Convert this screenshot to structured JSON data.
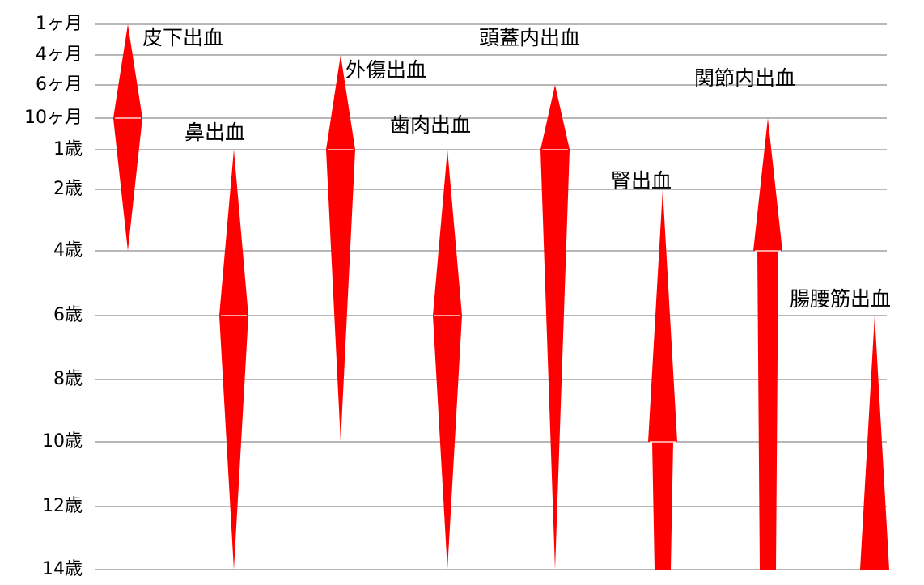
{
  "chart_data": {
    "type": "range-marks",
    "y_axis": {
      "direction": "top-to-bottom",
      "ticks": [
        "1ヶ月",
        "4ヶ月",
        "6ヶ月",
        "10ヶ月",
        "1歳",
        "2歳",
        "4歳",
        "6歳",
        "8歳",
        "10歳",
        "12歳",
        "14歳"
      ],
      "grid": true
    },
    "series_color": "#ff0000",
    "categories": [
      {
        "label": "皮下出血",
        "start": "1ヶ月",
        "peak": "10ヶ月",
        "end": "4歳",
        "shape": "diamond"
      },
      {
        "label": "鼻出血",
        "start": "1歳",
        "peak": "6歳",
        "end": "14歳",
        "shape": "diamond"
      },
      {
        "label": "外傷出血",
        "start": "4ヶ月",
        "peak": "1歳",
        "end": "10歳",
        "shape": "diamond"
      },
      {
        "label": "歯肉出血",
        "start": "1歳",
        "peak": "6歳",
        "end": "14歳",
        "shape": "diamond"
      },
      {
        "label": "頭蓋内出血",
        "start": "6ヶ月",
        "peak": "1歳",
        "end": "14歳",
        "shape": "diamond"
      },
      {
        "label": "腎出血",
        "start": "2歳",
        "peak": "10歳",
        "end": "14歳",
        "shape": "arrow-down-cont"
      },
      {
        "label": "関節内出血",
        "start": "10ヶ月",
        "peak": "4歳",
        "end": "14歳",
        "shape": "arrow-down-cont"
      },
      {
        "label": "腸腰筋出血",
        "start": "6歳",
        "peak": "14歳",
        "end": "14歳",
        "shape": "triangle"
      }
    ]
  }
}
